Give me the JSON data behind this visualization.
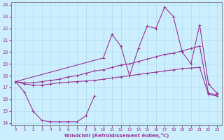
{
  "xlabel": "Windchill (Refroidissement éolien,°C)",
  "xlim": [
    -0.5,
    23.5
  ],
  "ylim": [
    13.8,
    24.2
  ],
  "yticks": [
    14,
    15,
    16,
    17,
    18,
    19,
    20,
    21,
    22,
    23,
    24
  ],
  "xticks": [
    0,
    1,
    2,
    3,
    4,
    5,
    6,
    7,
    8,
    9,
    10,
    11,
    12,
    13,
    14,
    15,
    16,
    17,
    18,
    19,
    20,
    21,
    22,
    23
  ],
  "background_color": "#cceeff",
  "grid_color": "#aaddee",
  "line_color": "#993399",
  "line1_y": [
    17.5,
    16.6,
    15.0,
    14.2,
    14.1,
    14.1,
    14.1,
    14.1,
    14.6,
    16.3,
    null,
    null,
    null,
    null,
    null,
    null,
    null,
    null,
    null,
    null,
    null,
    null,
    null,
    null
  ],
  "line2_y": [
    17.5,
    null,
    null,
    null,
    null,
    null,
    null,
    null,
    null,
    null,
    19.5,
    21.5,
    20.5,
    18.0,
    20.3,
    22.2,
    22.0,
    23.8,
    23.0,
    20.0,
    19.0,
    22.3,
    17.3,
    16.5
  ],
  "line3_y": [
    17.5,
    17.4,
    17.4,
    17.5,
    17.6,
    17.7,
    17.9,
    18.0,
    18.2,
    18.4,
    18.5,
    18.7,
    18.9,
    19.0,
    19.2,
    19.4,
    19.6,
    19.8,
    19.9,
    20.1,
    20.3,
    20.5,
    16.5,
    16.4
  ],
  "line4_y": [
    17.5,
    17.3,
    17.2,
    17.2,
    17.3,
    17.4,
    17.45,
    17.5,
    17.55,
    17.6,
    17.7,
    17.8,
    17.9,
    18.0,
    18.1,
    18.2,
    18.3,
    18.4,
    18.5,
    18.6,
    18.65,
    18.7,
    16.4,
    16.3
  ],
  "figsize": [
    3.2,
    2.0
  ],
  "dpi": 100
}
